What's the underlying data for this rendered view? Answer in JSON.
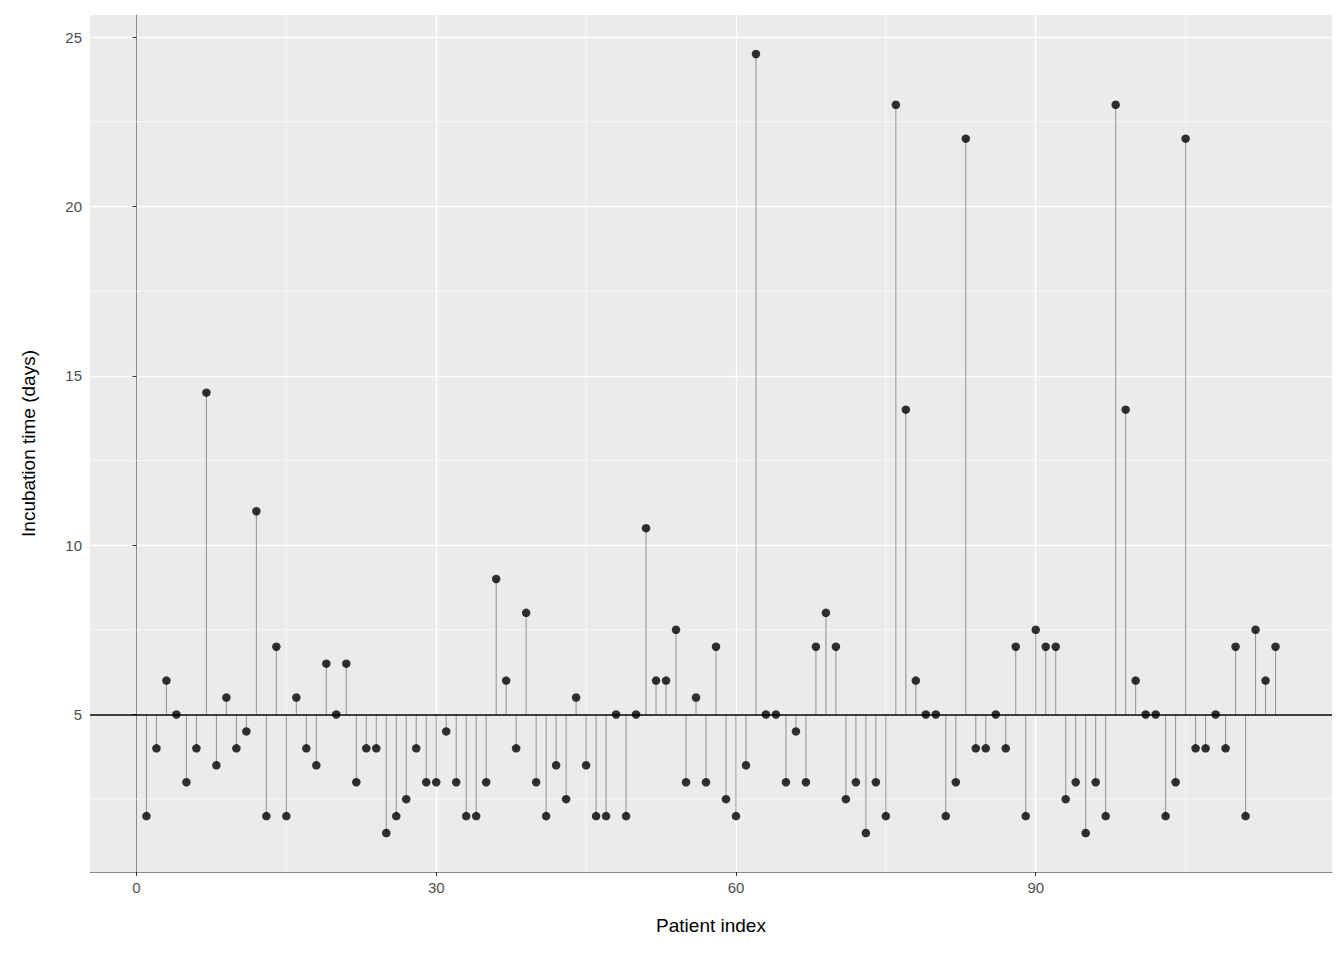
{
  "chart_data": {
    "type": "lollipop",
    "x_label": "Patient index",
    "y_label": "Incubation time (days)",
    "x": [
      1,
      2,
      3,
      4,
      5,
      6,
      7,
      8,
      9,
      10,
      11,
      12,
      13,
      14,
      15,
      16,
      17,
      18,
      19,
      20,
      21,
      22,
      23,
      24,
      25,
      26,
      27,
      28,
      29,
      30,
      31,
      32,
      33,
      34,
      35,
      36,
      37,
      38,
      39,
      40,
      41,
      42,
      43,
      44,
      45,
      46,
      47,
      48,
      49,
      50,
      51,
      52,
      53,
      54,
      55,
      56,
      57,
      58,
      59,
      60,
      61,
      62,
      63,
      64,
      65,
      66,
      67,
      68,
      69,
      70,
      71,
      72,
      73,
      74,
      75,
      76,
      77,
      78,
      79,
      80,
      81,
      82,
      83,
      84,
      85,
      86,
      87,
      88,
      89,
      90,
      91,
      92,
      93,
      94,
      95,
      96,
      97,
      98,
      99,
      100,
      101,
      102,
      103,
      104,
      105,
      106,
      107,
      108,
      109,
      110,
      111,
      112,
      113,
      114
    ],
    "values": [
      2,
      4,
      6,
      5,
      3,
      4,
      14.5,
      3.5,
      5.5,
      4,
      4.5,
      11,
      2,
      7,
      2,
      5.5,
      4,
      3.5,
      6.5,
      5,
      6.5,
      3,
      4,
      4,
      1.5,
      2,
      2.5,
      4,
      3,
      3,
      4.5,
      3,
      2,
      2,
      3,
      9,
      6,
      4,
      8,
      3,
      2,
      3.5,
      2.5,
      5.5,
      3.5,
      2,
      2,
      5,
      2,
      5,
      10.5,
      6,
      6,
      7.5,
      3,
      5.5,
      3,
      7,
      2.5,
      2,
      3.5,
      24.5,
      5,
      5,
      3,
      4.5,
      3,
      7,
      8,
      7,
      2.5,
      3,
      1.5,
      3,
      2,
      23,
      14,
      6,
      5,
      5,
      2,
      3,
      22,
      4,
      4,
      5,
      4,
      7,
      2,
      7.5,
      7,
      7,
      2.5,
      3,
      1.5,
      3,
      2,
      23,
      14,
      6,
      5,
      5,
      2,
      3,
      22,
      4,
      4,
      5,
      4,
      7,
      2,
      7.5,
      6,
      7
    ],
    "baseline": 5,
    "color": "#000000",
    "xlim": [
      -4.65,
      119.65
    ],
    "xticks": [
      0,
      30,
      60,
      90
    ],
    "ylim": [
      0.35,
      25.65
    ],
    "yticks": [
      5,
      10,
      15,
      20,
      25
    ],
    "grid": true
  }
}
